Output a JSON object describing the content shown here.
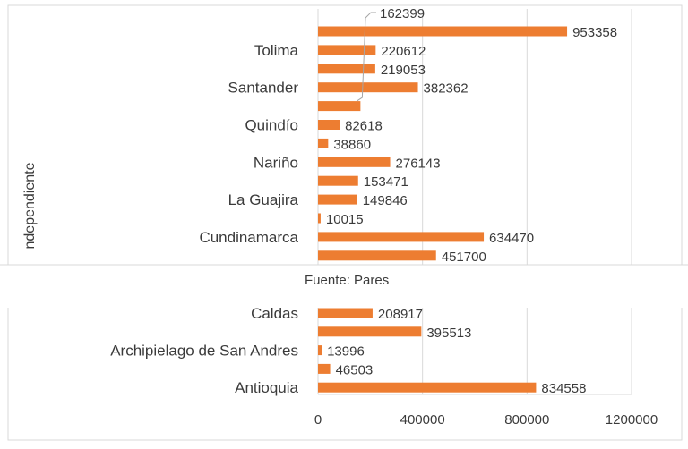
{
  "chart_data": {
    "type": "bar",
    "orientation": "horizontal",
    "ylabel": "ndependiente",
    "source": "Fuente: Pares",
    "xlim": [
      0,
      1200000
    ],
    "x_ticks": [
      "0",
      "400000",
      "800000",
      "1200000"
    ],
    "grid": true,
    "bars_color": "#ED7D31",
    "top_panel": [
      {
        "label": "",
        "value": 953358,
        "value_label": "953358"
      },
      {
        "label": "Tolima",
        "value": 220612,
        "value_label": "220612"
      },
      {
        "label": "",
        "value": 219053,
        "value_label": "219053"
      },
      {
        "label": "Santander",
        "value": 382362,
        "value_label": "382362"
      },
      {
        "label": "",
        "value": 162399,
        "value_label": "162399",
        "callout": true
      },
      {
        "label": "Quindío",
        "value": 82618,
        "value_label": "82618"
      },
      {
        "label": "",
        "value": 38860,
        "value_label": "38860"
      },
      {
        "label": "Nariño",
        "value": 276143,
        "value_label": "276143"
      },
      {
        "label": "",
        "value": 153471,
        "value_label": "153471"
      },
      {
        "label": "La Guajira",
        "value": 149846,
        "value_label": "149846"
      },
      {
        "label": "",
        "value": 10015,
        "value_label": "10015"
      },
      {
        "label": "Cundinamarca",
        "value": 634470,
        "value_label": "634470"
      },
      {
        "label": "",
        "value": 451700,
        "value_label": "451700"
      }
    ],
    "bottom_panel": [
      {
        "label": "Caldas",
        "value": 208917,
        "value_label": "208917"
      },
      {
        "label": "",
        "value": 395513,
        "value_label": "395513"
      },
      {
        "label": "Archipielago de San Andres",
        "value": 13996,
        "value_label": "13996"
      },
      {
        "label": "",
        "value": 46503,
        "value_label": "46503"
      },
      {
        "label": "Antioquia",
        "value": 834558,
        "value_label": "834558"
      }
    ]
  }
}
